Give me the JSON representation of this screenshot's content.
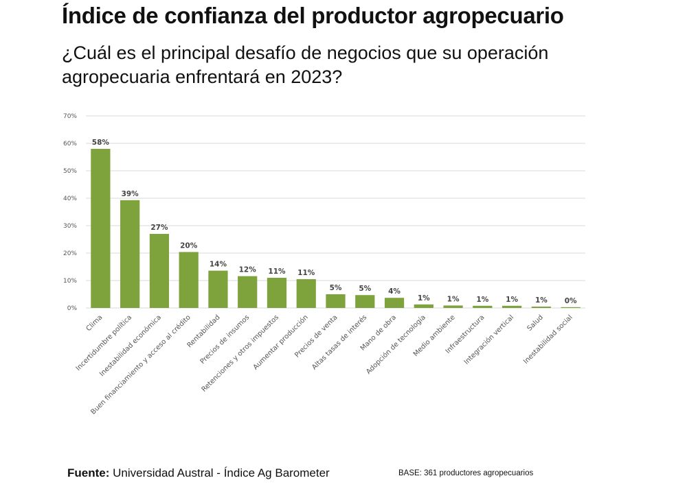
{
  "title": "Índice de confianza del productor agropecuario",
  "subtitle": "¿Cuál es el principal desafío de negocios que su operación agropecuaria enfrentará en 2023?",
  "footer": {
    "source_label": "Fuente:",
    "source_text": "Universidad Austral - Índice Ag Barometer",
    "base": "BASE: 361 productores agropecuarios"
  },
  "colors": {
    "bar": "#7ea23c",
    "grid": "#d9d9d9"
  },
  "chart_data": {
    "type": "bar",
    "title": "",
    "xlabel": "",
    "ylabel": "",
    "ylim": [
      0,
      70
    ],
    "yticks": [
      0,
      10,
      20,
      30,
      40,
      50,
      60,
      70
    ],
    "ytick_labels": [
      "0%",
      "10%",
      "20%",
      "30%",
      "40%",
      "50%",
      "60%",
      "70%"
    ],
    "grid": true,
    "categories": [
      "Clima",
      "Incertidumbre política",
      "Inestabilidad económica",
      "Buen financiamiento y acceso al crédito",
      "Rentabilidad",
      "Precios de insumos",
      "Retenciones y otros impuestos",
      "Aumentar producción",
      "Precios de venta",
      "Altas tasas de interés",
      "Mano de obra",
      "Adopción de tecnología",
      "Medio ambiente",
      "Infraestructura",
      "Integración vertical",
      "Salud",
      "Inestabilidad social"
    ],
    "values": [
      58,
      39.3,
      27,
      20.4,
      13.6,
      11.6,
      11,
      10.5,
      5,
      4.7,
      3.7,
      1.3,
      0.9,
      0.8,
      0.8,
      0.5,
      0.3
    ],
    "value_labels": [
      "58%",
      "39%",
      "27%",
      "20%",
      "14%",
      "12%",
      "11%",
      "11%",
      "5%",
      "5%",
      "4%",
      "1%",
      "1%",
      "1%",
      "1%",
      "1%",
      "0%"
    ]
  }
}
